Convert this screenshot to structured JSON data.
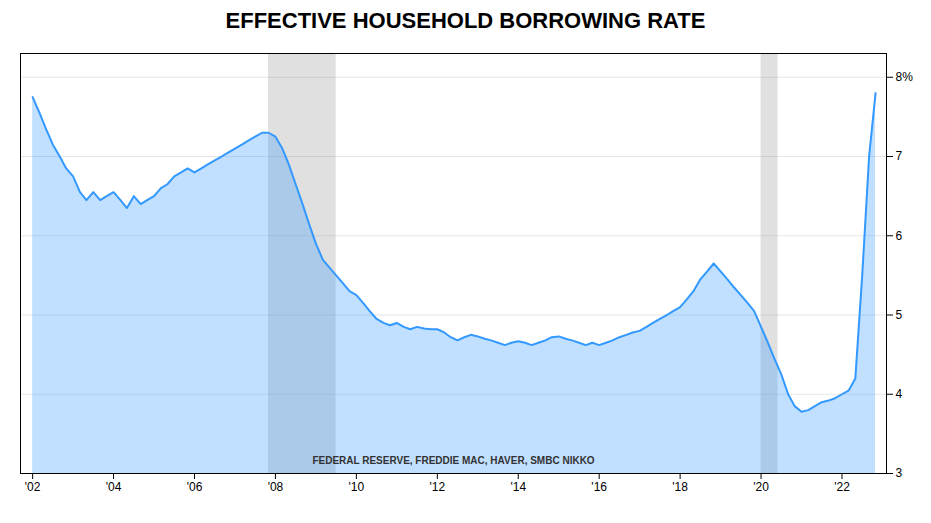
{
  "chart_data": {
    "type": "area",
    "title": "EFFECTIVE HOUSEHOLD BORROWING RATE",
    "annotations": [
      "FEDERAL RESERVE, FREDDIE MAC, HAVER, SMBC NIKKO"
    ],
    "color": "#3399ff",
    "grid": true,
    "recessions": [
      [
        2007.83,
        2009.5
      ],
      [
        2020.0,
        2020.42
      ]
    ],
    "xlim": [
      2001.7,
      2023.1
    ],
    "xticks": [
      {
        "value": 2002,
        "label": "'02"
      },
      {
        "value": 2004,
        "label": "'04"
      },
      {
        "value": 2006,
        "label": "'06"
      },
      {
        "value": 2008,
        "label": "'08"
      },
      {
        "value": 2010,
        "label": "'10"
      },
      {
        "value": 2012,
        "label": "'12"
      },
      {
        "value": 2014,
        "label": "'14"
      },
      {
        "value": 2016,
        "label": "'16"
      },
      {
        "value": 2018,
        "label": "'18"
      },
      {
        "value": 2020,
        "label": "'20"
      },
      {
        "value": 2022,
        "label": "'22"
      }
    ],
    "ylim": [
      3.0,
      8.3
    ],
    "yticks": [
      3,
      4,
      5,
      6,
      7,
      {
        "value": 8,
        "label": "8%"
      }
    ],
    "x": [
      2002.0,
      2002.17,
      2002.33,
      2002.5,
      2002.67,
      2002.83,
      2003.0,
      2003.17,
      2003.33,
      2003.5,
      2003.67,
      2003.83,
      2004.0,
      2004.17,
      2004.33,
      2004.5,
      2004.67,
      2004.83,
      2005.0,
      2005.17,
      2005.33,
      2005.5,
      2005.67,
      2005.83,
      2006.0,
      2006.17,
      2006.33,
      2006.5,
      2006.67,
      2006.83,
      2007.0,
      2007.17,
      2007.33,
      2007.5,
      2007.67,
      2007.83,
      2008.0,
      2008.17,
      2008.33,
      2008.5,
      2008.67,
      2008.83,
      2009.0,
      2009.17,
      2009.33,
      2009.5,
      2009.67,
      2009.83,
      2010.0,
      2010.17,
      2010.33,
      2010.5,
      2010.67,
      2010.83,
      2011.0,
      2011.17,
      2011.33,
      2011.5,
      2011.67,
      2011.83,
      2012.0,
      2012.17,
      2012.33,
      2012.5,
      2012.67,
      2012.83,
      2013.0,
      2013.17,
      2013.33,
      2013.5,
      2013.67,
      2013.83,
      2014.0,
      2014.17,
      2014.33,
      2014.5,
      2014.67,
      2014.83,
      2015.0,
      2015.17,
      2015.33,
      2015.5,
      2015.67,
      2015.83,
      2016.0,
      2016.17,
      2016.33,
      2016.5,
      2016.67,
      2016.83,
      2017.0,
      2017.17,
      2017.33,
      2017.5,
      2017.67,
      2017.83,
      2018.0,
      2018.17,
      2018.33,
      2018.5,
      2018.67,
      2018.83,
      2019.0,
      2019.17,
      2019.33,
      2019.5,
      2019.67,
      2019.83,
      2020.0,
      2020.17,
      2020.33,
      2020.5,
      2020.67,
      2020.83,
      2021.0,
      2021.17,
      2021.33,
      2021.5,
      2021.67,
      2021.83,
      2022.0,
      2022.17,
      2022.33,
      2022.5,
      2022.67,
      2022.83
    ],
    "values": [
      7.75,
      7.55,
      7.35,
      7.15,
      7.0,
      6.85,
      6.75,
      6.55,
      6.45,
      6.55,
      6.45,
      6.5,
      6.55,
      6.45,
      6.35,
      6.5,
      6.4,
      6.45,
      6.5,
      6.6,
      6.65,
      6.75,
      6.8,
      6.85,
      6.8,
      6.85,
      6.9,
      6.95,
      7.0,
      7.05,
      7.1,
      7.15,
      7.2,
      7.25,
      7.3,
      7.3,
      7.25,
      7.1,
      6.9,
      6.65,
      6.4,
      6.15,
      5.9,
      5.7,
      5.6,
      5.5,
      5.4,
      5.3,
      5.25,
      5.15,
      5.05,
      4.95,
      4.9,
      4.87,
      4.9,
      4.85,
      4.82,
      4.85,
      4.83,
      4.82,
      4.82,
      4.78,
      4.72,
      4.68,
      4.72,
      4.75,
      4.73,
      4.7,
      4.68,
      4.65,
      4.62,
      4.65,
      4.67,
      4.65,
      4.62,
      4.65,
      4.68,
      4.72,
      4.73,
      4.7,
      4.68,
      4.65,
      4.62,
      4.65,
      4.62,
      4.65,
      4.68,
      4.72,
      4.75,
      4.78,
      4.8,
      4.85,
      4.9,
      4.95,
      5.0,
      5.05,
      5.1,
      5.2,
      5.3,
      5.45,
      5.55,
      5.65,
      5.55,
      5.45,
      5.35,
      5.25,
      5.15,
      5.05,
      4.85,
      4.65,
      4.45,
      4.25,
      4.0,
      3.85,
      3.78,
      3.8,
      3.85,
      3.9,
      3.92,
      3.95,
      4.0,
      4.05,
      4.2,
      5.5,
      7.0,
      7.8
    ]
  }
}
